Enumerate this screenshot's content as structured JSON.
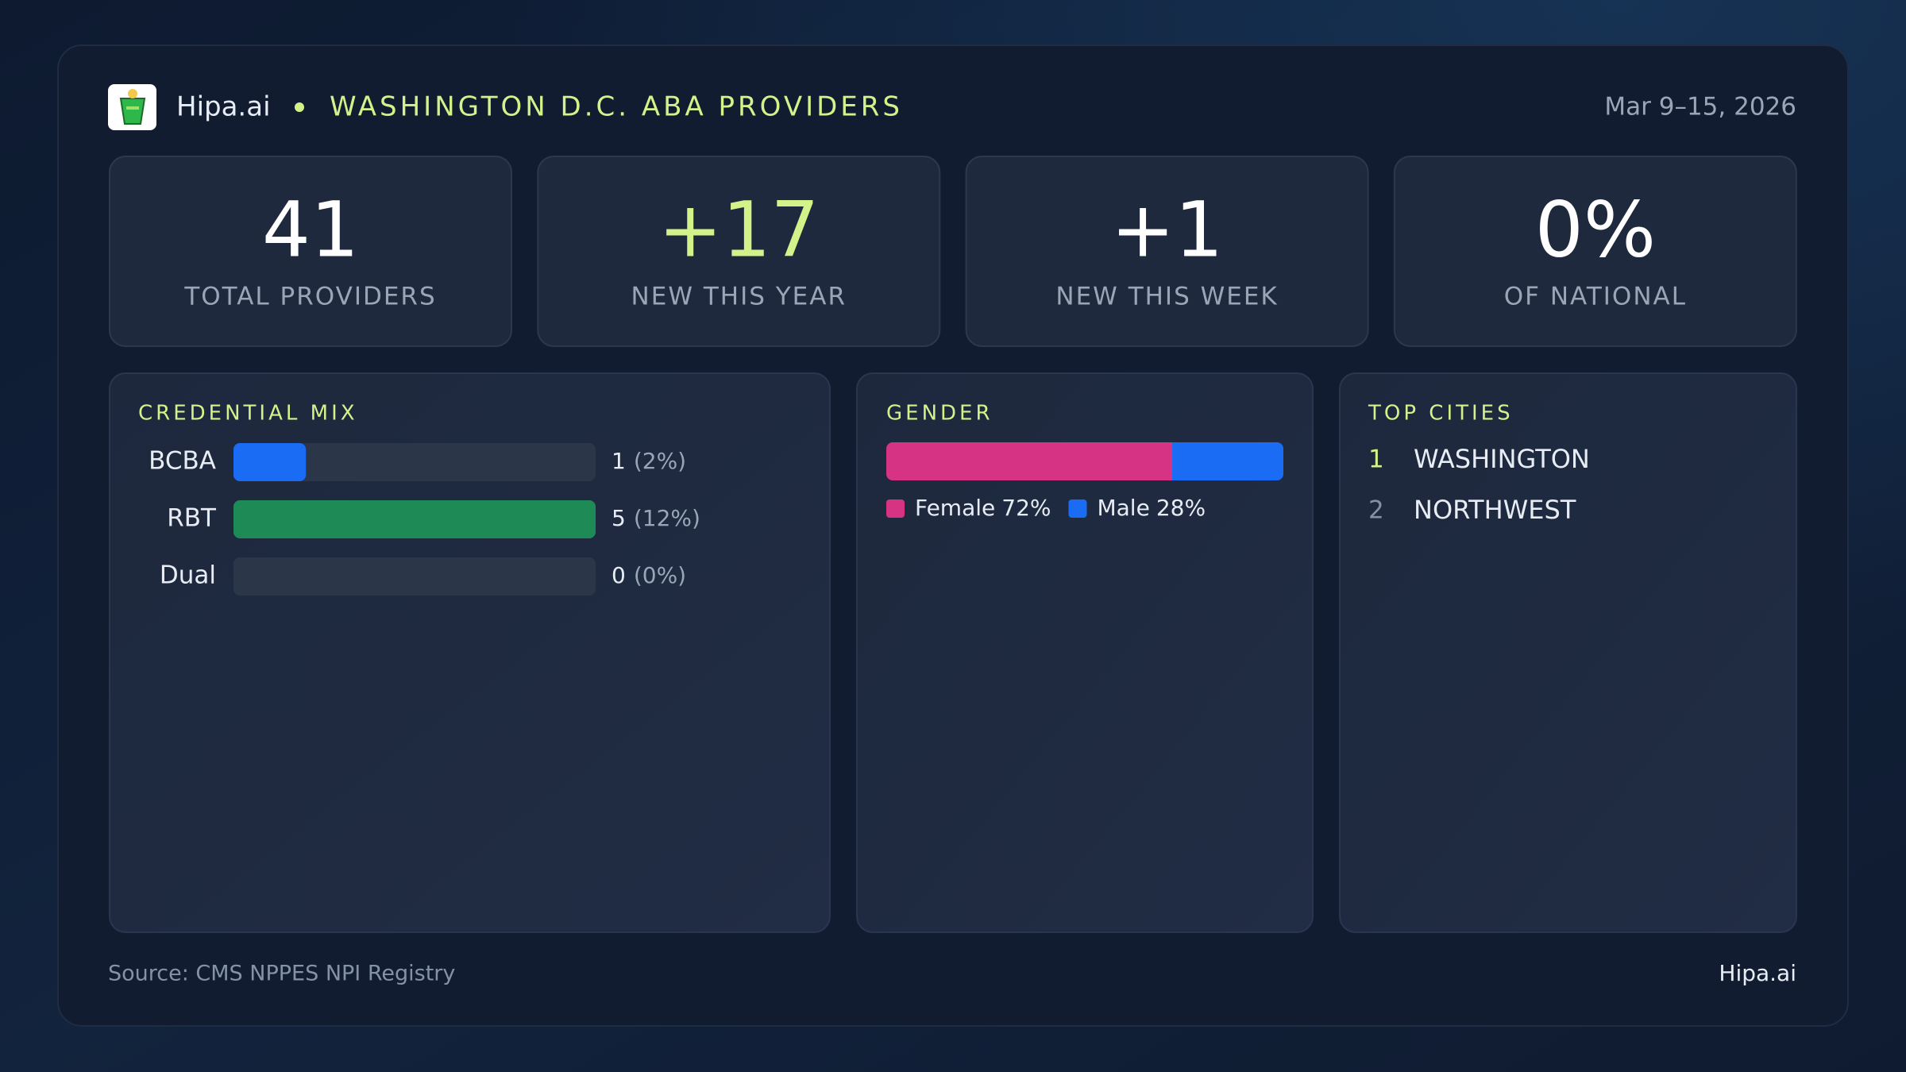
{
  "header": {
    "brand": "Hipa.ai",
    "title": "WASHINGTON D.C. ABA PROVIDERS",
    "date": "Mar 9–15, 2026"
  },
  "kpis": [
    {
      "value": "41",
      "caption": "TOTAL PROVIDERS"
    },
    {
      "value": "+17",
      "caption": "NEW THIS YEAR"
    },
    {
      "value": "+1",
      "caption": "NEW THIS WEEK"
    },
    {
      "value": "0%",
      "caption": "OF NATIONAL"
    }
  ],
  "credential_mix": {
    "title": "CREDENTIAL MIX",
    "color_track": "#2b3749",
    "rows": [
      {
        "label": "BCBA",
        "count": 1,
        "share_label": "(2%)",
        "color": "#1a6cf5"
      },
      {
        "label": "RBT",
        "count": 5,
        "share_label": "(12%)",
        "color": "#1e8a55"
      },
      {
        "label": "Dual",
        "count": 0,
        "share_label": "(0%)",
        "color": "#1a6cf5"
      }
    ]
  },
  "gender": {
    "title": "GENDER",
    "series": [
      {
        "name": "Female",
        "value": 72,
        "value_label": "72%",
        "color": "#d63384"
      },
      {
        "name": "Male",
        "value": 28,
        "value_label": "28%",
        "color": "#1a6cf5"
      }
    ]
  },
  "top_cities": {
    "title": "TOP CITIES",
    "rows": [
      {
        "rank": "1",
        "name": "WASHINGTON"
      },
      {
        "rank": "2",
        "name": "NORTHWEST"
      }
    ]
  },
  "footer": {
    "source": "Source: CMS NPPES NPI Registry",
    "brand": "Hipa.ai"
  }
}
